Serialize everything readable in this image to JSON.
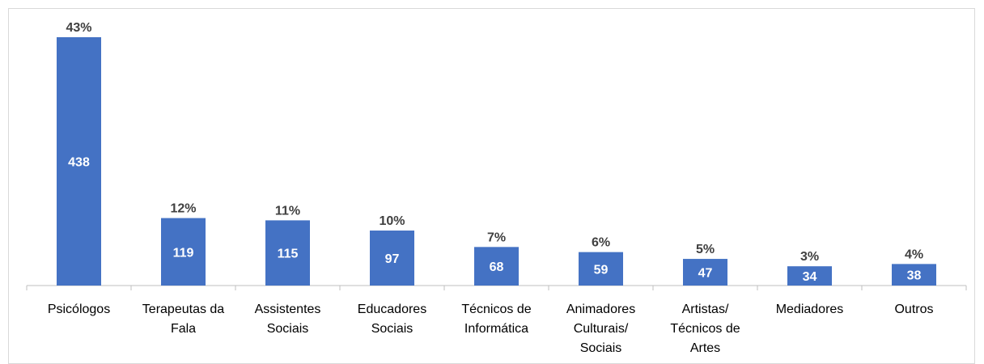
{
  "chart_data": {
    "type": "bar",
    "title": "",
    "xlabel": "",
    "ylabel": "",
    "ylim": [
      0,
      438
    ],
    "grid": false,
    "legend": "none",
    "bar_color": "#4472c4",
    "categories": [
      [
        "Psicólogos"
      ],
      [
        "Terapeutas da",
        "Fala"
      ],
      [
        "Assistentes",
        "Sociais"
      ],
      [
        "Educadores",
        "Sociais"
      ],
      [
        "Técnicos de",
        "Informática"
      ],
      [
        "Animadores",
        "Culturais/",
        "Sociais"
      ],
      [
        "Artistas/",
        "Técnicos de",
        "Artes"
      ],
      [
        "Mediadores"
      ],
      [
        "Outros"
      ]
    ],
    "values": [
      438,
      119,
      115,
      97,
      68,
      59,
      47,
      34,
      38
    ],
    "percent_labels": [
      "43%",
      "12%",
      "11%",
      "10%",
      "7%",
      "6%",
      "5%",
      "3%",
      "4%"
    ]
  }
}
